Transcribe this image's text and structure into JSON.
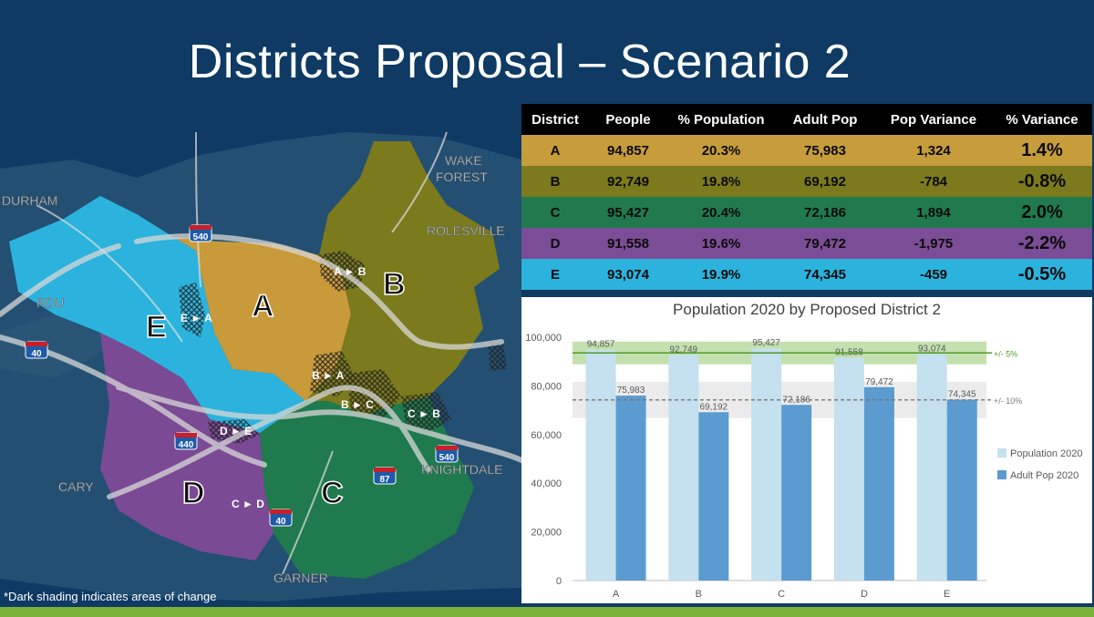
{
  "slide": {
    "title": "Districts Proposal – Scenario 2",
    "footnote": "*Dark shading indicates areas of change"
  },
  "map": {
    "district_labels": [
      "A",
      "B",
      "C",
      "D",
      "E"
    ],
    "change_labels": [
      "A ► B",
      "E ► A",
      "B ► A",
      "B ► C",
      "C ► B",
      "D ► E",
      "C ► D"
    ],
    "place_labels": [
      "DURHAM",
      "RDU",
      "CARY",
      "WAKE",
      "FOREST",
      "ROLESVILLE",
      "KNIGHTDALE",
      "GARNER"
    ],
    "highway_shields": [
      "540",
      "40",
      "440",
      "540",
      "87",
      "40"
    ],
    "colors": {
      "A": "#c99a3a",
      "B": "#7b7a1c",
      "C": "#1f7a4d",
      "D": "#7a4a94",
      "E": "#2bb3dd",
      "background": "#0e3a63"
    }
  },
  "table": {
    "headers": [
      "District",
      "People",
      "% Population",
      "Adult Pop",
      "Pop Variance",
      "% Variance"
    ],
    "rows": [
      [
        "A",
        "94,857",
        "20.3%",
        "75,983",
        "1,324",
        "1.4%"
      ],
      [
        "B",
        "92,749",
        "19.8%",
        "69,192",
        "-784",
        "-0.8%"
      ],
      [
        "C",
        "95,427",
        "20.4%",
        "72,186",
        "1,894",
        "2.0%"
      ],
      [
        "D",
        "91,558",
        "19.6%",
        "79,472",
        "-1,975",
        "-2.2%"
      ],
      [
        "E",
        "93,074",
        "19.9%",
        "74,345",
        "-459",
        "-0.5%"
      ]
    ]
  },
  "chart_data": {
    "type": "bar",
    "title": "Population 2020 by Proposed District 2",
    "categories": [
      "A",
      "B",
      "C",
      "D",
      "E"
    ],
    "series": [
      {
        "name": "Population 2020",
        "values": [
          94857,
          92749,
          95427,
          91558,
          93074
        ],
        "labels": [
          "94,857",
          "92,749",
          "95,427",
          "91,558",
          "93,074"
        ],
        "color": "#c5e0ee"
      },
      {
        "name": "Adult Pop 2020",
        "values": [
          75983,
          69192,
          72186,
          79472,
          74345
        ],
        "labels": [
          "75,983",
          "69,192",
          "72,186",
          "79,472",
          "74,345"
        ],
        "color": "#5b9bd0"
      }
    ],
    "yticks": [
      0,
      20000,
      40000,
      60000,
      80000,
      100000
    ],
    "ytick_labels": [
      "0",
      "20,000",
      "40,000",
      "60,000",
      "80,000",
      "100,000"
    ],
    "ylim": [
      0,
      100000
    ],
    "bands": [
      {
        "label": "+/- 5%",
        "center": 93533,
        "low": 88856,
        "high": 98210,
        "fill": "#b5d89a",
        "line": "#4e9a2a"
      },
      {
        "label": "+/- 10%",
        "center": 74236,
        "low": 66812,
        "high": 81660,
        "fill": "#e6e6e6",
        "line": "#777777"
      }
    ],
    "legend_position": "right",
    "grid": false
  }
}
